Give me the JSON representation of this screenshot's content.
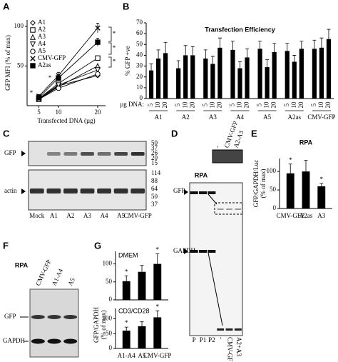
{
  "panel_labels": [
    "A",
    "B",
    "C",
    "D",
    "E",
    "F",
    "G"
  ],
  "chart_data": [
    {
      "type": "line",
      "xlabel": "Transfected DNA (µg)",
      "ylabel": "GFP MFI (% of max)",
      "x": [
        5,
        10,
        20
      ],
      "xlim": [
        2,
        22
      ],
      "xticks": [
        5,
        10,
        20
      ],
      "ylim": [
        0,
        108
      ],
      "yticks": [
        50,
        100
      ],
      "color": "#000000",
      "series": [
        {
          "name": "A1",
          "marker": "diamond",
          "values": [
            8,
            25,
            38
          ]
        },
        {
          "name": "A2",
          "marker": "square",
          "values": [
            9,
            28,
            60
          ]
        },
        {
          "name": "A3",
          "marker": "triangle",
          "values": [
            8,
            24,
            50
          ]
        },
        {
          "name": "A4",
          "marker": "triangle-down",
          "values": [
            9,
            26,
            45
          ]
        },
        {
          "name": "A5",
          "marker": "circle",
          "values": [
            8,
            22,
            40
          ]
        },
        {
          "name": "CMV-GFP",
          "marker": "x",
          "values": [
            12,
            38,
            98
          ],
          "errors": [
            2,
            4,
            6
          ]
        },
        {
          "name": "A2as",
          "marker": "filled-square",
          "values": [
            10,
            35,
            80
          ],
          "errors": [
            2,
            3,
            5
          ]
        }
      ],
      "annotations": [
        "*",
        "*",
        "*",
        "*",
        "*"
      ]
    },
    {
      "type": "bar",
      "title": "Transfection Efficiency",
      "ylabel": "% GFP +ve",
      "xlabel": "µg DNA:",
      "color": "#000000",
      "categories": [
        "5",
        "10",
        "20",
        "5",
        "10",
        "20",
        "5",
        "10",
        "20",
        "5",
        "10",
        "20",
        "5",
        "10",
        "20",
        "5",
        "10",
        "20",
        "5",
        "10",
        "20"
      ],
      "groups": [
        "A1",
        "A2",
        "A3",
        "A4",
        "A5",
        "A2as",
        "CMV-GFP"
      ],
      "values": [
        26,
        37,
        42,
        28,
        40,
        40,
        37,
        32,
        47,
        45,
        28,
        38,
        46,
        29,
        43,
        44,
        34,
        46,
        46,
        47,
        55
      ],
      "errors": [
        6,
        8,
        10,
        7,
        9,
        8,
        8,
        7,
        9,
        8,
        6,
        8,
        7,
        7,
        8,
        7,
        6,
        7,
        8,
        9,
        9
      ],
      "ylim": [
        0,
        70
      ],
      "yticks": [
        0,
        10,
        20,
        30,
        40,
        50,
        60,
        70
      ]
    },
    {
      "type": "bar",
      "title": "RPA",
      "ylabel": [
        "GFP/GAPDH/Luc",
        "(% of max)"
      ],
      "color": "#000000",
      "categories": [
        "CMV-GFP",
        "A2as",
        "A3"
      ],
      "values": [
        95,
        100,
        60
      ],
      "errors": [
        25,
        30,
        8
      ],
      "significance": [
        "*",
        null,
        "*"
      ],
      "ylim": [
        0,
        135
      ],
      "yticks": [
        0,
        50,
        100
      ]
    },
    {
      "type": "bar",
      "title": "DMEM",
      "color": "#000000",
      "values": [
        52,
        78,
        100
      ],
      "errors": [
        15,
        18,
        28
      ],
      "significance": [
        "*",
        null,
        "*"
      ],
      "ylim": [
        0,
        135
      ],
      "yticks": [
        0,
        50,
        100
      ]
    },
    {
      "type": "bar",
      "title": "CD3/CD28",
      "ylabel": [
        "GFP/GAPDH",
        "(% of max)"
      ],
      "color": "#000000",
      "categories": [
        "A1-A4",
        "A5",
        "CMV-GFP"
      ],
      "values": [
        60,
        75,
        105
      ],
      "errors": [
        12,
        15,
        22
      ],
      "significance": [
        "*",
        null,
        "*"
      ],
      "ylim": [
        0,
        135
      ],
      "yticks": [
        0,
        50,
        100
      ]
    }
  ],
  "blot_c": {
    "bands": [
      "GFP",
      "actin"
    ],
    "lanes": [
      "Mock",
      "A1",
      "A2",
      "A3",
      "A4",
      "A5",
      "CMV-GFP"
    ],
    "markers_top": [
      "50",
      "37",
      "26",
      "20",
      "15"
    ],
    "markers_bottom": [
      "114",
      "88",
      "64",
      "50",
      "37"
    ]
  },
  "blot_d": {
    "title": "RPA",
    "bands": [
      "GFP",
      "GAPDH"
    ],
    "lanes": [
      "P",
      "P1",
      "P2",
      "-",
      "CMV-GFP",
      "A2+A3"
    ],
    "inset_lanes": [
      "-",
      "CMV-GFP",
      "A2-A3"
    ]
  },
  "blot_f": {
    "title": "RPA",
    "lanes": [
      "CMV-GFP",
      "A1-A4",
      "A5"
    ],
    "bands": [
      "GFP",
      "GAPDH"
    ]
  }
}
